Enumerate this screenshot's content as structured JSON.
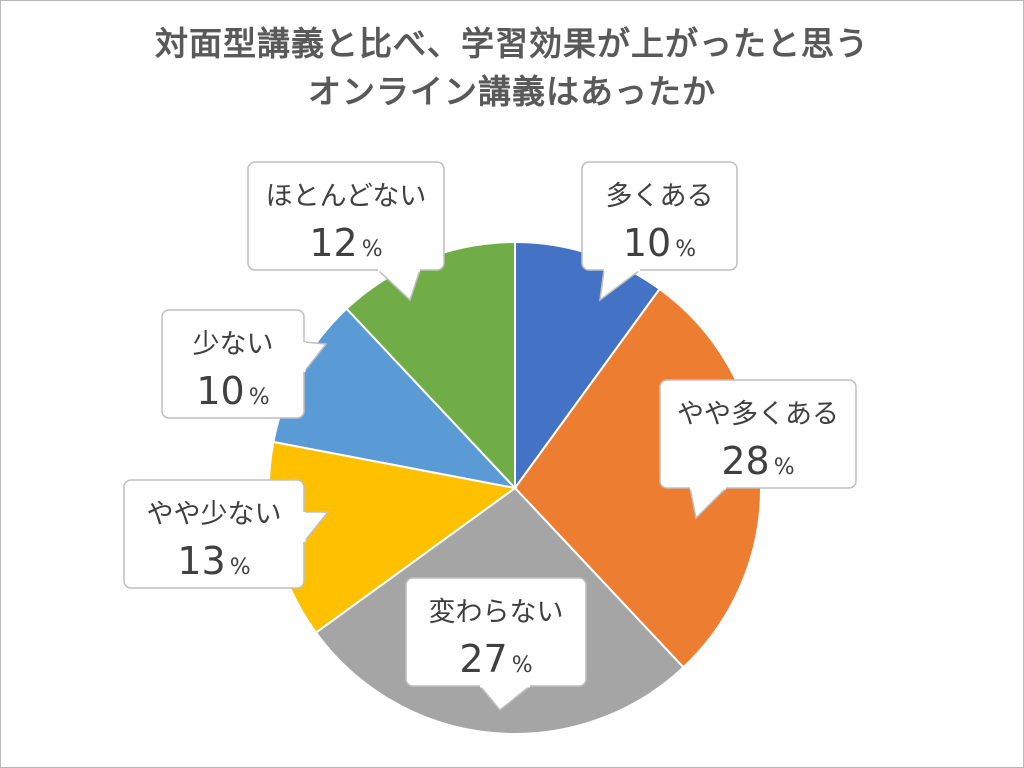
{
  "chart_data": {
    "type": "pie",
    "title_lines": [
      "対面型講義と比べ、学習効果が上がったと思う",
      "オンライン講義はあったか"
    ],
    "unit": "%",
    "slices": [
      {
        "label": "多くある",
        "value": 10,
        "color": "#4472C4"
      },
      {
        "label": "やや多くある",
        "value": 28,
        "color": "#ED7D31"
      },
      {
        "label": "変わらない",
        "value": 27,
        "color": "#A5A5A5"
      },
      {
        "label": "やや少ない",
        "value": 13,
        "color": "#FFC000"
      },
      {
        "label": "少ない",
        "value": 10,
        "color": "#5B9BD5"
      },
      {
        "label": "ほとんどない",
        "value": 12,
        "color": "#70AD47"
      }
    ]
  }
}
